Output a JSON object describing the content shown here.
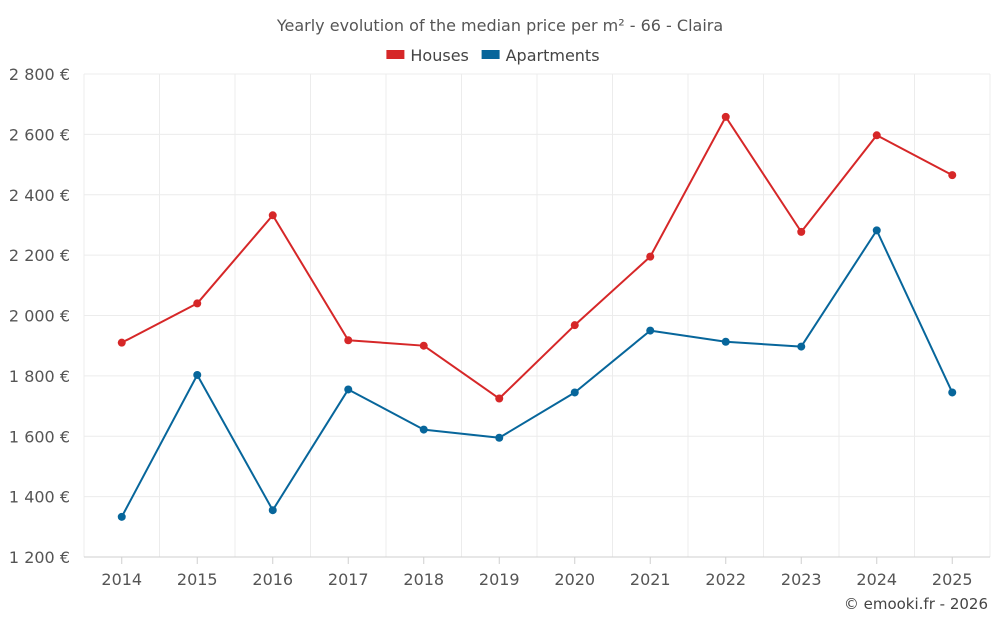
{
  "chart_data": {
    "type": "line",
    "title": "Yearly evolution of the median price per m² - 66 - Claira",
    "categories": [
      "2014",
      "2015",
      "2016",
      "2017",
      "2018",
      "2019",
      "2020",
      "2021",
      "2022",
      "2023",
      "2024",
      "2025"
    ],
    "series": [
      {
        "name": "Houses",
        "color": "#d62728",
        "values": [
          1910,
          2040,
          2332,
          1918,
          1900,
          1725,
          1968,
          2195,
          2658,
          2277,
          2597,
          2465
        ]
      },
      {
        "name": "Apartments",
        "color": "#07669b",
        "values": [
          1333,
          1803,
          1355,
          1755,
          1622,
          1595,
          1745,
          1950,
          1913,
          1897,
          2282,
          1745
        ]
      }
    ],
    "ylim": [
      1200,
      2800
    ],
    "yticks": [
      1200,
      1400,
      1600,
      1800,
      2000,
      2200,
      2400,
      2600,
      2800
    ],
    "ytick_labels": [
      "1 200 €",
      "1 400 €",
      "1 600 €",
      "1 800 €",
      "2 000 €",
      "2 200 €",
      "2 400 €",
      "2 600 €",
      "2 800 €"
    ],
    "xlabel": "",
    "ylabel": "",
    "grid": true,
    "legend_position": "top-center"
  },
  "credit": "© emooki.fr - 2026"
}
